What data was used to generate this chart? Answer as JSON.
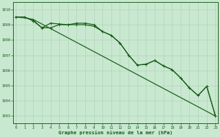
{
  "background_color": "#c8e8d0",
  "grid_color": "#b0ccb4",
  "line_color": "#1a5c1a",
  "xlabel": "Graphe pression niveau de la mer (hPa)",
  "ylim": [
    1002.5,
    1010.5
  ],
  "xlim": [
    -0.3,
    23.3
  ],
  "yticks": [
    1003,
    1004,
    1005,
    1006,
    1007,
    1008,
    1009,
    1010
  ],
  "xticks": [
    0,
    1,
    2,
    3,
    4,
    5,
    6,
    7,
    8,
    9,
    10,
    11,
    12,
    13,
    14,
    15,
    16,
    17,
    18,
    19,
    20,
    21,
    22,
    23
  ],
  "series1": [
    1009.5,
    1009.5,
    1009.3,
    1008.8,
    1009.1,
    1009.05,
    1009.0,
    1009.1,
    1009.1,
    1009.0,
    1008.55,
    1008.3,
    1007.8,
    1007.0,
    1006.35,
    1006.4,
    1006.65,
    1006.3,
    1006.05,
    1005.5,
    1004.85,
    1004.35,
    1004.95,
    1003.0
  ],
  "series2": [
    1009.5,
    1009.5,
    1009.25,
    1008.8,
    1008.8,
    1009.0,
    1009.0,
    1009.0,
    1009.0,
    1008.9,
    1008.55,
    1008.3,
    1007.8,
    1007.0,
    1006.35,
    1006.4,
    1006.65,
    1006.3,
    1006.05,
    1005.5,
    1004.85,
    1004.35,
    1004.95,
    1003.0
  ],
  "series3_x": [
    0,
    1,
    2,
    23
  ],
  "series3_y": [
    1009.5,
    1009.45,
    1009.35,
    1003.0
  ]
}
